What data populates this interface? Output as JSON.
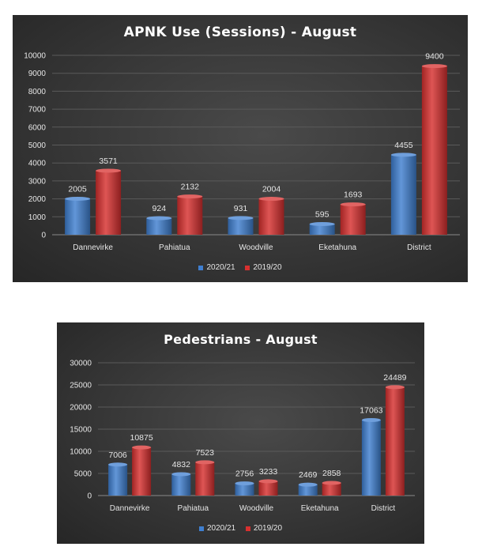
{
  "chart_data": [
    {
      "type": "bar",
      "title": "APNK Use (Sessions) - August",
      "categories": [
        "Dannevirke",
        "Pahiatua",
        "Woodville",
        "Eketahuna",
        "District"
      ],
      "series": [
        {
          "name": "2020/21",
          "values": [
            2005,
            924,
            931,
            595,
            4455
          ],
          "color": "#3f7fd0"
        },
        {
          "name": "2019/20",
          "values": [
            3571,
            2132,
            2004,
            1693,
            9400
          ],
          "color": "#d7302f"
        }
      ],
      "yticks": [
        0,
        1000,
        2000,
        3000,
        4000,
        5000,
        6000,
        7000,
        8000,
        9000,
        10000
      ],
      "ylim": [
        0,
        10000
      ],
      "grid": true,
      "legend": "bottom"
    },
    {
      "type": "bar",
      "title": "Pedestrians - August",
      "categories": [
        "Dannevirke",
        "Pahiatua",
        "Woodville",
        "Eketahuna",
        "District"
      ],
      "series": [
        {
          "name": "2020/21",
          "values": [
            7006,
            4832,
            2756,
            2469,
            17063
          ],
          "color": "#3f7fd0"
        },
        {
          "name": "2019/20",
          "values": [
            10875,
            7523,
            3233,
            2858,
            24489
          ],
          "color": "#d7302f"
        }
      ],
      "yticks": [
        0,
        5000,
        10000,
        15000,
        20000,
        25000,
        30000
      ],
      "ylim": [
        0,
        30000
      ],
      "grid": true,
      "legend": "bottom"
    }
  ]
}
